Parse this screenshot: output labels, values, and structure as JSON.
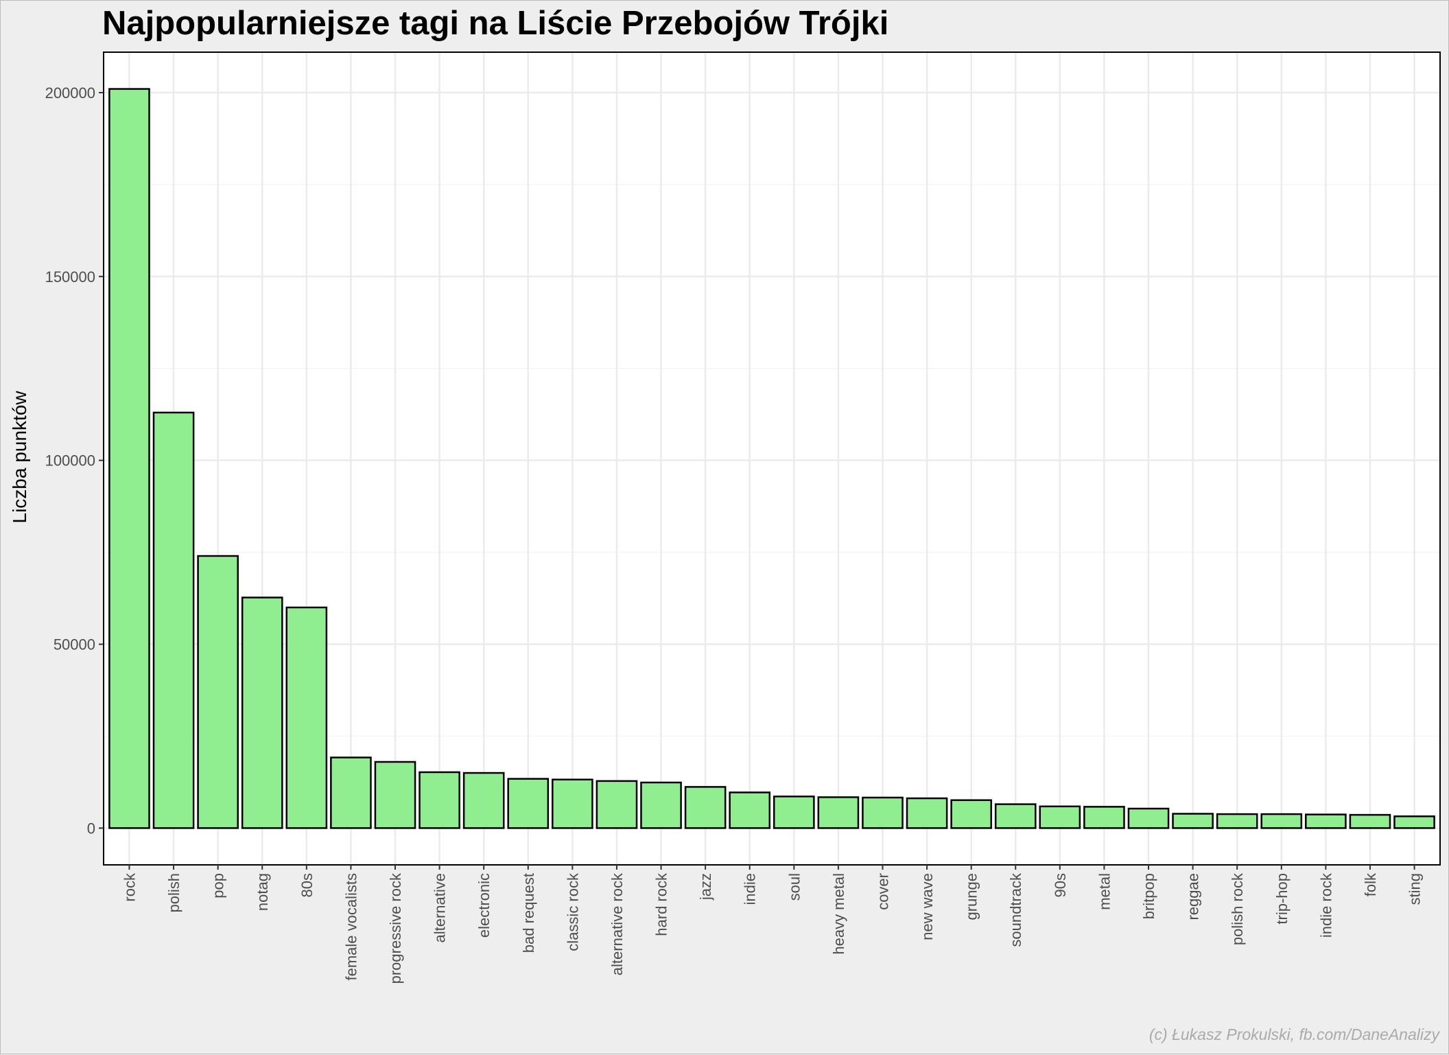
{
  "chart_data": {
    "type": "bar",
    "title": "Najpopularniejsze tagi na Liście Przebojów Trójki",
    "xlabel": "",
    "ylabel": "Liczba punktów",
    "caption": "(c) Łukasz Prokulski, fb.com/DaneAnalizy",
    "categories": [
      "rock",
      "polish",
      "pop",
      "notag",
      "80s",
      "female vocalists",
      "progressive rock",
      "alternative",
      "electronic",
      "bad request",
      "classic rock",
      "alternative rock",
      "hard rock",
      "jazz",
      "indie",
      "soul",
      "heavy metal",
      "cover",
      "new wave",
      "grunge",
      "soundtrack",
      "90s",
      "metal",
      "britpop",
      "reggae",
      "polish rock",
      "trip-hop",
      "indie rock",
      "folk",
      "sting"
    ],
    "values": [
      201000,
      113000,
      74000,
      62700,
      60000,
      19200,
      18000,
      15200,
      15000,
      13400,
      13200,
      12800,
      12400,
      11200,
      9700,
      8600,
      8400,
      8300,
      8100,
      7600,
      6500,
      5900,
      5800,
      5300,
      3900,
      3800,
      3800,
      3700,
      3600,
      3200
    ],
    "y_ticks": [
      "0",
      "50000",
      "100000",
      "150000",
      "200000"
    ],
    "ylim": [
      -10000,
      211000
    ],
    "grid": true,
    "legend": "none",
    "colors": {
      "bar_fill": "#90ee90",
      "bar_stroke": "#000000",
      "panel_background": "#ffffff",
      "figure_background": "#eeeeee",
      "grid_major": "#ebebeb",
      "grid_minor": "#f5f5f5",
      "tick_label": "#4d4d4d",
      "caption": "#aaaaaa"
    }
  }
}
